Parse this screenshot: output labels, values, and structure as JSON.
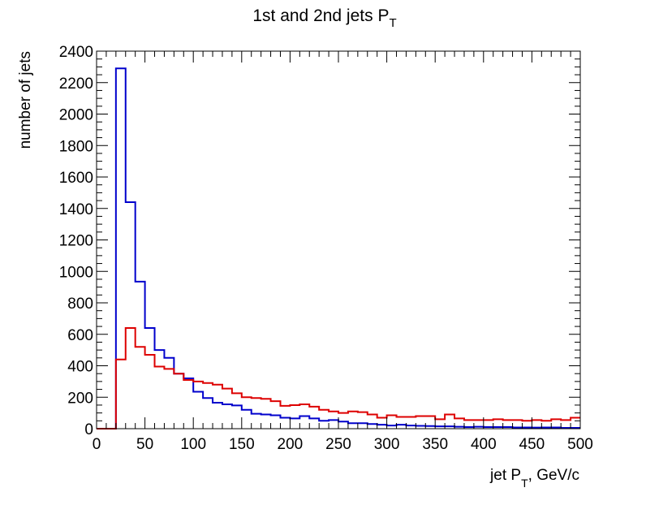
{
  "chart_data": {
    "type": "histogram",
    "title": "1st and 2nd jets P",
    "title_subscript": "T",
    "xlabel_prefix": "jet P",
    "xlabel_subscript": "T",
    "xlabel_suffix": ", GeV/c",
    "ylabel": "number of jets",
    "xlim": [
      0,
      500
    ],
    "ylim": [
      0,
      2400
    ],
    "x_ticks": [
      0,
      50,
      100,
      150,
      200,
      250,
      300,
      350,
      400,
      450,
      500
    ],
    "y_ticks": [
      0,
      200,
      400,
      600,
      800,
      1000,
      1200,
      1400,
      1600,
      1800,
      2000,
      2200,
      2400
    ],
    "bin_width": 10,
    "bin_edges_start": 0,
    "grid": false,
    "series": [
      {
        "color": "#0000cc",
        "values": [
          0,
          0,
          2290,
          1440,
          935,
          640,
          500,
          450,
          350,
          320,
          235,
          195,
          165,
          155,
          148,
          120,
          95,
          90,
          85,
          70,
          65,
          80,
          65,
          50,
          55,
          45,
          35,
          35,
          30,
          25,
          20,
          25,
          20,
          18,
          17,
          15,
          15,
          12,
          10,
          12,
          10,
          10,
          10,
          8,
          8,
          7,
          8,
          8,
          5,
          5
        ]
      },
      {
        "color": "#dd0000",
        "values": [
          0,
          0,
          440,
          640,
          520,
          470,
          395,
          380,
          350,
          310,
          300,
          290,
          280,
          255,
          225,
          200,
          195,
          190,
          175,
          145,
          150,
          155,
          140,
          120,
          110,
          100,
          110,
          105,
          90,
          70,
          85,
          75,
          75,
          80,
          80,
          60,
          90,
          65,
          55,
          55,
          55,
          60,
          55,
          55,
          50,
          55,
          50,
          60,
          55,
          70
        ]
      }
    ]
  }
}
